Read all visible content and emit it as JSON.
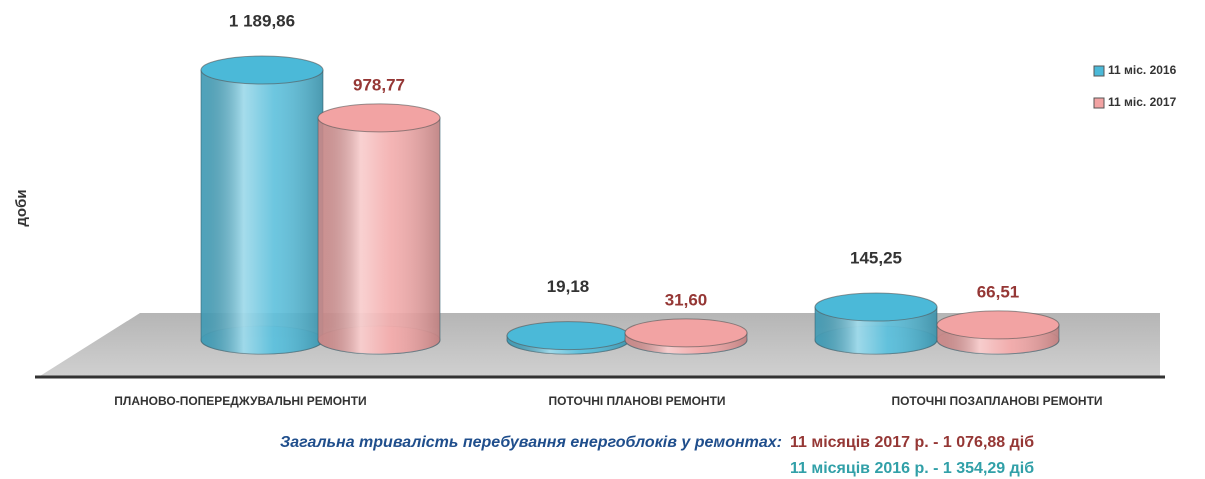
{
  "chart_data": {
    "type": "cylinder",
    "y_label": "доби",
    "categories": [
      "ПЛАНОВО-ПОПЕРЕДЖУВАЛЬНІ РЕМОНТИ",
      "ПОТОЧНІ ПЛАНОВІ РЕМОНТИ",
      "ПОТОЧНІ ПОЗАПЛАНОВІ РЕМОНТИ"
    ],
    "series": [
      {
        "name": "11 міс. 2016",
        "color": "#4bb9d8",
        "label_color": "#333333",
        "values": [
          1189.86,
          19.18,
          145.25
        ],
        "value_labels": [
          "1 189,86",
          "19,18",
          "145,25"
        ]
      },
      {
        "name": "11 міс. 2017",
        "color": "#f2a3a3",
        "label_color": "#953735",
        "values": [
          978.77,
          31.6,
          66.51
        ],
        "value_labels": [
          "978,77",
          "31,60",
          "66,51"
        ]
      }
    ],
    "ylim": [
      0,
      1300
    ],
    "legend": "top-right",
    "annotations": [
      {
        "text": "Загальна тривалість перебування енергоблоків у ремонтах:",
        "color": "#1f4e8c"
      },
      {
        "text": "11 місяців 2017 р. - 1 076,88 діб",
        "color": "#953735"
      },
      {
        "text": "11 місяців 2016 р. - 1 354,29 діб",
        "color": "#31a0a8"
      }
    ]
  }
}
